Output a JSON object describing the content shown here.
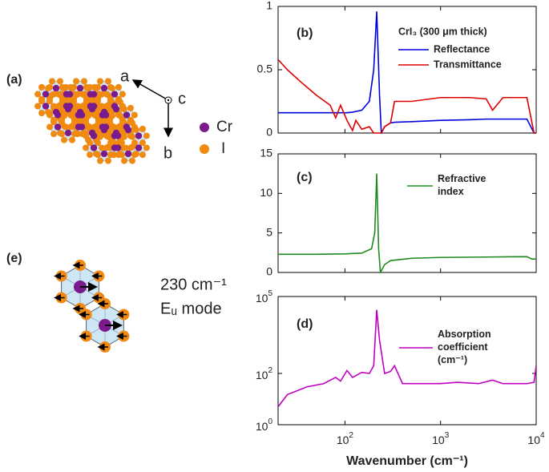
{
  "chart_data": [
    {
      "type": "line",
      "label": "(b)",
      "title": "CrI₃ (300 μm thick)",
      "x": [
        20,
        25,
        35,
        50,
        70,
        80,
        90,
        105,
        120,
        130,
        150,
        180,
        200,
        215,
        230,
        240,
        260,
        300,
        330,
        500,
        1000,
        2000,
        3000,
        3500,
        4500,
        8000,
        9500,
        10000
      ],
      "series": [
        {
          "name": "Reflectance",
          "color": "#0000dd",
          "values": [
            0.16,
            0.16,
            0.16,
            0.16,
            0.16,
            0.16,
            0.16,
            0.16,
            0.165,
            0.17,
            0.18,
            0.25,
            0.5,
            0.96,
            0.3,
            0.0,
            0.05,
            0.08,
            0.085,
            0.09,
            0.1,
            0.105,
            0.11,
            0.11,
            0.11,
            0.11,
            0.0,
            0.0
          ]
        },
        {
          "name": "Transmittance",
          "color": "#dd0000",
          "values": [
            0.58,
            0.5,
            0.4,
            0.3,
            0.22,
            0.12,
            0.22,
            0.1,
            0.02,
            0.1,
            0.03,
            0.05,
            0.0,
            0.0,
            0.0,
            0.0,
            0.05,
            0.08,
            0.25,
            0.25,
            0.28,
            0.28,
            0.27,
            0.18,
            0.28,
            0.28,
            0.0,
            0.0
          ]
        }
      ],
      "xlim": [
        20,
        10000
      ],
      "log_x": true,
      "xticks": [
        100,
        1000,
        10000
      ],
      "ylim": [
        0,
        1
      ],
      "yticks": [
        0,
        0.5,
        1
      ]
    },
    {
      "type": "line",
      "label": "(c)",
      "x": [
        20,
        50,
        100,
        150,
        190,
        205,
        215,
        225,
        235,
        260,
        300,
        500,
        1000,
        3000,
        8000,
        9000,
        10000
      ],
      "series": [
        {
          "name": "Refractive index",
          "color": "#1f8a1f",
          "values": [
            2.3,
            2.3,
            2.35,
            2.45,
            3,
            5,
            12.5,
            3,
            0,
            1,
            1.5,
            1.8,
            1.9,
            1.95,
            2,
            1.7,
            1.7
          ]
        }
      ],
      "xlim": [
        20,
        10000
      ],
      "log_x": true,
      "xticks": [
        100,
        1000,
        10000
      ],
      "ylim": [
        0,
        15
      ],
      "yticks": [
        0,
        5,
        10,
        15
      ]
    },
    {
      "type": "line",
      "label": "(d)",
      "xlabel": "Wavenumber (cm⁻¹)",
      "x": [
        20,
        25,
        40,
        60,
        80,
        90,
        105,
        120,
        150,
        180,
        200,
        215,
        230,
        260,
        300,
        330,
        400,
        1000,
        1500,
        2500,
        3500,
        4500,
        8000,
        9500,
        10000
      ],
      "series": [
        {
          "name": "Absorption coefficient (cm⁻¹)",
          "color": "#c000c0",
          "values": [
            5,
            15,
            30,
            40,
            70,
            50,
            130,
            70,
            110,
            100,
            200,
            30000,
            2000,
            100,
            120,
            200,
            40,
            40,
            45,
            40,
            55,
            40,
            40,
            45,
            200
          ]
        }
      ],
      "xlim": [
        20,
        10000
      ],
      "log_x": true,
      "xticks": [
        {
          "value": 100,
          "label": "10^2"
        },
        {
          "value": 1000,
          "label": "10^3"
        },
        {
          "value": 10000,
          "label": "10^4"
        }
      ],
      "ylim": [
        1,
        100000
      ],
      "log_y": true,
      "yticks": [
        {
          "value": 1,
          "label": "10^0"
        },
        {
          "value": 100,
          "label": "10^2"
        },
        {
          "value": 100000,
          "label": "10^5"
        }
      ]
    }
  ],
  "diagram": {
    "panel_a": {
      "label": "(a)",
      "axes": [
        "a",
        "b",
        "c"
      ],
      "legend": [
        "Cr",
        "I"
      ]
    },
    "panel_e": {
      "label": "(e)",
      "frequency": "230 cm⁻¹",
      "mode": "Eᵤ mode"
    }
  }
}
